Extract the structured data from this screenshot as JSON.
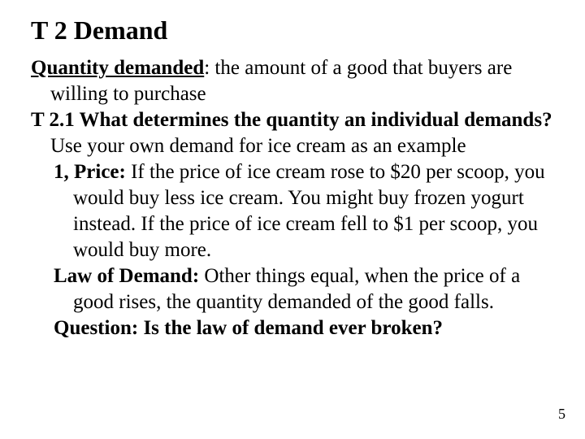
{
  "title": "T 2 Demand",
  "qd_label": "Quantity demanded",
  "qd_def": ": the amount of a good that buyers are willing to purchase",
  "section_label": "T 2.1 What determines the quantity an individual demands?",
  "section_tail": " Use your own demand for ice cream as an example",
  "price_label": "1, Price:",
  "price_text": " If the price of ice cream rose to $20 per scoop, you would buy less ice cream. You might buy frozen yogurt instead. If the price of ice cream fell to $1 per scoop, you would buy more.",
  "law_label": "Law of Demand:",
  "law_text": " Other things equal, when the price of a good rises, the quantity demanded of the good falls.",
  "question_label": "Question:",
  "question_text": " Is the law of demand ever broken?",
  "page_number": "5",
  "style": {
    "background_color": "#ffffff",
    "text_color": "#000000",
    "font_family": "Times New Roman",
    "title_fontsize": 32,
    "body_fontsize": 25,
    "pagenum_fontsize": 18,
    "title_weight": "bold"
  }
}
